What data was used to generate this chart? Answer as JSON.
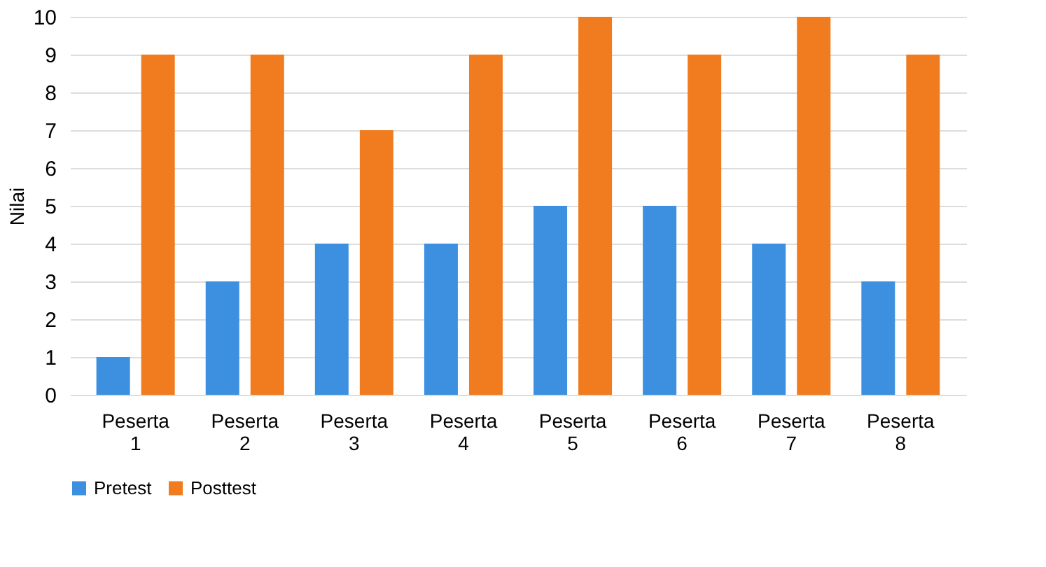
{
  "chart_data": {
    "type": "bar",
    "ylabel": "Nilai",
    "categories": [
      "Peserta 1",
      "Peserta 2",
      "Peserta 3",
      "Peserta 4",
      "Peserta 5",
      "Peserta 6",
      "Peserta 7",
      "Peserta 8"
    ],
    "series": [
      {
        "name": "Pretest",
        "color": "#3d8fe0",
        "values": [
          1,
          3,
          4,
          4,
          5,
          5,
          4,
          3
        ]
      },
      {
        "name": "Posttest",
        "color": "#f07c1f",
        "values": [
          9,
          9,
          7,
          9,
          10,
          9,
          10,
          9
        ]
      }
    ],
    "ylim": [
      0,
      10
    ],
    "yticks": [
      0,
      1,
      2,
      3,
      4,
      5,
      6,
      7,
      8,
      9,
      10
    ],
    "grid": "y",
    "legend": "bottom"
  }
}
